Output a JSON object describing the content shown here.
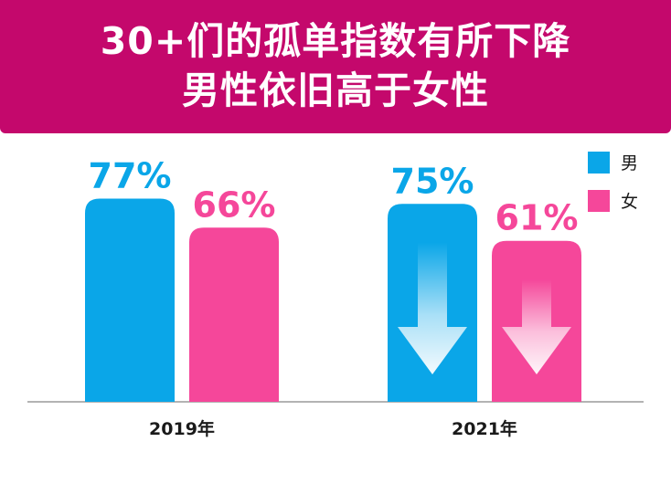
{
  "header": {
    "title_line1": "30+们的孤单指数有所下降",
    "title_line2": "男性依旧高于女性",
    "background_color": "#c4086c"
  },
  "chart_data": {
    "type": "bar",
    "title": "30+们的孤单指数有所下降 男性依旧高于女性",
    "categories": [
      "2019年",
      "2021年"
    ],
    "series": [
      {
        "name": "男",
        "values": [
          77,
          75
        ],
        "labels": [
          "77%",
          "75%"
        ],
        "color": "#0aa6e8"
      },
      {
        "name": "女",
        "values": [
          66,
          61
        ],
        "labels": [
          "66%",
          "61%"
        ],
        "color": "#f5479a"
      }
    ],
    "value_unit": "%",
    "ylim": [
      0,
      100
    ],
    "grid": false,
    "legend_position": "top-right",
    "decreasing_arrows_on": "2021年"
  }
}
